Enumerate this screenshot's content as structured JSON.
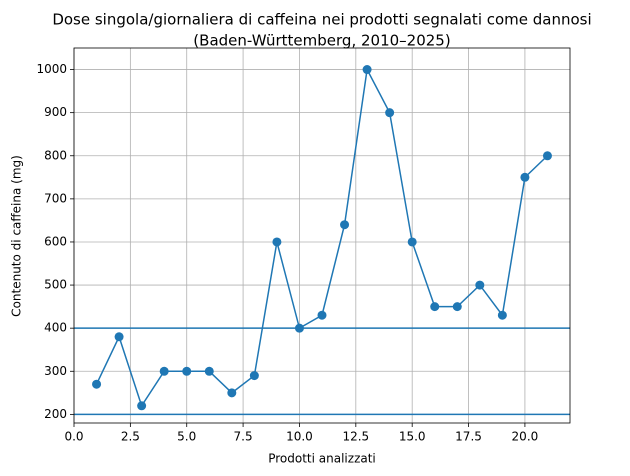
{
  "chart_data": {
    "type": "line",
    "title": [
      "Dose singola/giornaliera di caffeina nei prodotti segnalati come dannosi",
      "(Baden-Württemberg, 2010–2025)"
    ],
    "x_label": "Prodotti analizzati",
    "y_label": "Contenuto di caffeina (mg)",
    "x": [
      1,
      2,
      3,
      4,
      5,
      6,
      7,
      8,
      9,
      10,
      11,
      12,
      13,
      14,
      15,
      16,
      17,
      18,
      19,
      20,
      21
    ],
    "series": [
      {
        "name": "Caffeina",
        "color": "#1f77b4",
        "values": [
          270,
          380,
          220,
          300,
          300,
          300,
          250,
          290,
          600,
          400,
          430,
          640,
          1000,
          900,
          600,
          450,
          450,
          500,
          430,
          750,
          800
        ]
      }
    ],
    "hlines": [
      200,
      400
    ],
    "xlim": [
      0,
      22
    ],
    "ylim": [
      180,
      1050
    ],
    "xticks": [
      {
        "value": 0,
        "label": "0.0"
      },
      2.5,
      {
        "value": 5,
        "label": "5.0"
      },
      7.5,
      {
        "value": 10,
        "label": "10.0"
      },
      12.5,
      {
        "value": 15,
        "label": "15.0"
      },
      17.5,
      {
        "value": 20,
        "label": "20.0"
      }
    ],
    "yticks": [
      200,
      300,
      400,
      500,
      600,
      700,
      800,
      900,
      1000
    ],
    "grid": true
  }
}
